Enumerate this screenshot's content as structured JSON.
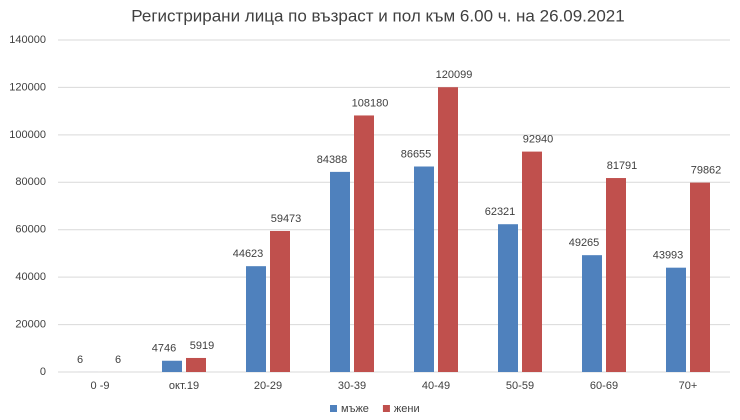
{
  "chart_data": {
    "type": "bar",
    "title": "Регистрирани лица по възраст и пол към 6.00 ч. на 26.09.2021",
    "categories": [
      "0 -9",
      "окт.19",
      "20-29",
      "30-39",
      "40-49",
      "50-59",
      "60-69",
      "70+"
    ],
    "series": [
      {
        "name": "мъже",
        "color": "#4f81bd",
        "values": [
          6,
          4746,
          44623,
          84388,
          86655,
          62321,
          49265,
          43993
        ]
      },
      {
        "name": "жени",
        "color": "#c0504d",
        "values": [
          6,
          5919,
          59473,
          108180,
          120099,
          92940,
          81791,
          79862
        ]
      }
    ],
    "ylim": [
      0,
      140000
    ],
    "yticks": [
      0,
      20000,
      40000,
      60000,
      80000,
      100000,
      120000,
      140000
    ],
    "grid": true,
    "legend": "bottom"
  }
}
